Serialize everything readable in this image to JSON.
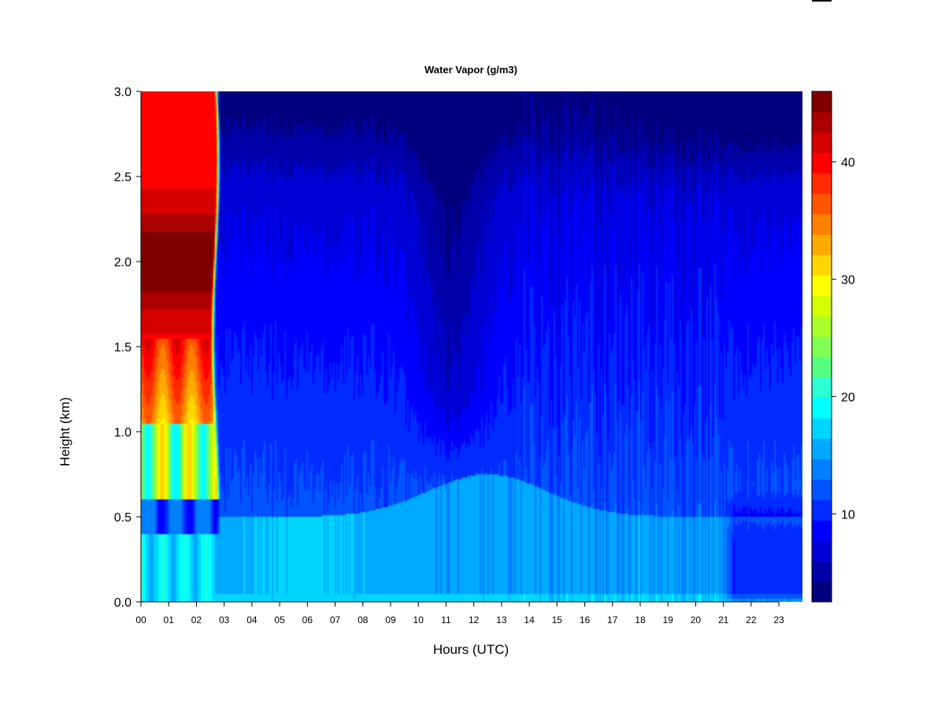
{
  "chart_data": {
    "type": "heatmap",
    "title": "Water Vapor (g/m3)",
    "xlabel": "Hours (UTC)",
    "ylabel": "Height (km)",
    "xlim": [
      0,
      24
    ],
    "ylim": [
      0,
      3
    ],
    "x_ticks": [
      "00",
      "01",
      "02",
      "03",
      "04",
      "05",
      "06",
      "07",
      "08",
      "09",
      "10",
      "11",
      "12",
      "13",
      "14",
      "15",
      "16",
      "17",
      "18",
      "19",
      "20",
      "21",
      "22",
      "23"
    ],
    "y_ticks": [
      "0.0",
      "0.5",
      "1.0",
      "1.5",
      "2.0",
      "2.5",
      "3.0"
    ],
    "colorbar": {
      "range": [
        2.5,
        46
      ],
      "ticks": [
        "10",
        "20",
        "30",
        "40"
      ],
      "tick_values": [
        10,
        20,
        30,
        40
      ],
      "levels": [
        2.5,
        5,
        7.5,
        10,
        12.5,
        15,
        17.5,
        20,
        22.5,
        25,
        27.5,
        30,
        32.5,
        35,
        37.5,
        40,
        42.5,
        46
      ],
      "colors": [
        "#00007F",
        "#0000AA",
        "#0000D5",
        "#0000FF",
        "#002BFF",
        "#0055FF",
        "#0080FF",
        "#00AAFF",
        "#00D5FF",
        "#00FFFF",
        "#2AFFD5",
        "#55FF80",
        "#80FF55",
        "#AAFF2B",
        "#D5FF00",
        "#FFFF00",
        "#FFD500",
        "#FFAA00",
        "#FF8000",
        "#FF5500",
        "#FF2B00",
        "#FF0000",
        "#D50000",
        "#AA0000",
        "#800000"
      ]
    },
    "grid": false,
    "field_description_points": [
      {
        "hour": 1.0,
        "height_km": 2.0,
        "value": 45
      },
      {
        "hour": 1.0,
        "height_km": 1.2,
        "value": 38
      },
      {
        "hour": 1.0,
        "height_km": 0.8,
        "value": 30
      },
      {
        "hour": 1.0,
        "height_km": 0.5,
        "value": 9
      },
      {
        "hour": 1.0,
        "height_km": 0.1,
        "value": 18
      },
      {
        "hour": 6.0,
        "height_km": 0.2,
        "value": 19
      },
      {
        "hour": 6.0,
        "height_km": 1.5,
        "value": 12
      },
      {
        "hour": 6.0,
        "height_km": 2.8,
        "value": 7
      },
      {
        "hour": 11.0,
        "height_km": 1.5,
        "value": 7
      },
      {
        "hour": 11.0,
        "height_km": 0.2,
        "value": 14
      },
      {
        "hour": 17.0,
        "height_km": 1.0,
        "value": 13
      },
      {
        "hour": 22.0,
        "height_km": 0.2,
        "value": 7
      },
      {
        "hour": 22.0,
        "height_km": 2.9,
        "value": 3
      }
    ]
  }
}
